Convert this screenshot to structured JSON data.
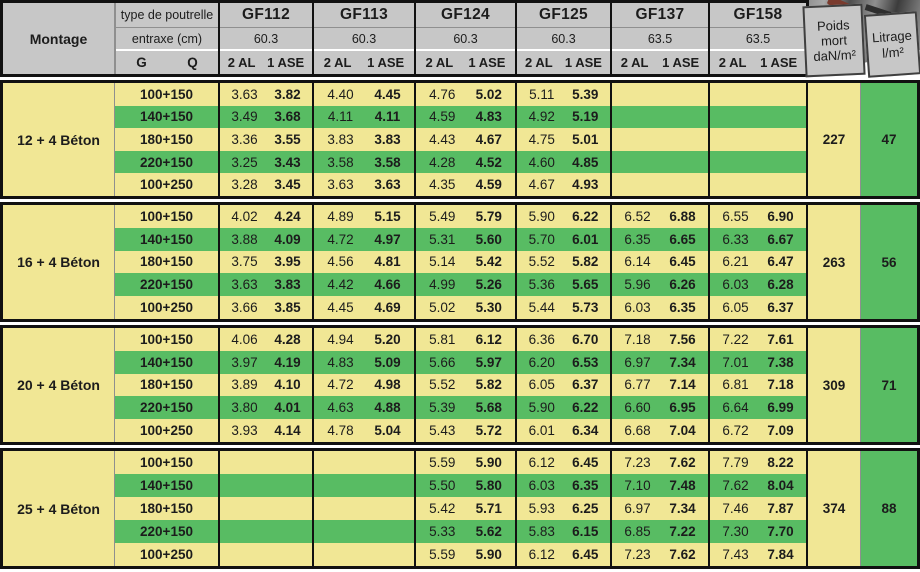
{
  "table": {
    "corner_label": "Montage",
    "header": {
      "type_de_poutrelle": "type de poutrelle",
      "entraxe": "entraxe (cm)",
      "g": "G",
      "q": "Q",
      "al": "2 AL",
      "ase": "1 ASE",
      "poids_line1": "Poids",
      "poids_line2": "mort",
      "poids_line3": "daN/m²",
      "litrage_line1": "Litrage",
      "litrage_line2": "l/m²",
      "beams": [
        {
          "name": "GF112",
          "entraxe": "60.3"
        },
        {
          "name": "GF113",
          "entraxe": "60.3"
        },
        {
          "name": "GF124",
          "entraxe": "60.3"
        },
        {
          "name": "GF125",
          "entraxe": "60.3"
        },
        {
          "name": "GF137",
          "entraxe": "63.5"
        },
        {
          "name": "GF158",
          "entraxe": "63.5"
        }
      ]
    },
    "colors": {
      "yellow": "#f1e795",
      "green": "#58bc63",
      "header_gray": "#c7c7c7",
      "border_black": "#111111"
    },
    "groups": [
      {
        "montage": "12 + 4 Béton",
        "poids": "227",
        "litrage": "47",
        "rows": [
          {
            "label": "100+150",
            "cells": [
              [
                "3.63",
                "3.82"
              ],
              [
                "4.40",
                "4.45"
              ],
              [
                "4.76",
                "5.02"
              ],
              [
                "5.11",
                "5.39"
              ],
              [
                "",
                ""
              ],
              [
                "",
                ""
              ]
            ]
          },
          {
            "label": "140+150",
            "cells": [
              [
                "3.49",
                "3.68"
              ],
              [
                "4.11",
                "4.11"
              ],
              [
                "4.59",
                "4.83"
              ],
              [
                "4.92",
                "5.19"
              ],
              [
                "",
                ""
              ],
              [
                "",
                ""
              ]
            ]
          },
          {
            "label": "180+150",
            "cells": [
              [
                "3.36",
                "3.55"
              ],
              [
                "3.83",
                "3.83"
              ],
              [
                "4.43",
                "4.67"
              ],
              [
                "4.75",
                "5.01"
              ],
              [
                "",
                ""
              ],
              [
                "",
                ""
              ]
            ]
          },
          {
            "label": "220+150",
            "cells": [
              [
                "3.25",
                "3.43"
              ],
              [
                "3.58",
                "3.58"
              ],
              [
                "4.28",
                "4.52"
              ],
              [
                "4.60",
                "4.85"
              ],
              [
                "",
                ""
              ],
              [
                "",
                ""
              ]
            ]
          },
          {
            "label": "100+250",
            "cells": [
              [
                "3.28",
                "3.45"
              ],
              [
                "3.63",
                "3.63"
              ],
              [
                "4.35",
                "4.59"
              ],
              [
                "4.67",
                "4.93"
              ],
              [
                "",
                ""
              ],
              [
                "",
                ""
              ]
            ]
          }
        ]
      },
      {
        "montage": "16 + 4 Béton",
        "poids": "263",
        "litrage": "56",
        "rows": [
          {
            "label": "100+150",
            "cells": [
              [
                "4.02",
                "4.24"
              ],
              [
                "4.89",
                "5.15"
              ],
              [
                "5.49",
                "5.79"
              ],
              [
                "5.90",
                "6.22"
              ],
              [
                "6.52",
                "6.88"
              ],
              [
                "6.55",
                "6.90"
              ]
            ]
          },
          {
            "label": "140+150",
            "cells": [
              [
                "3.88",
                "4.09"
              ],
              [
                "4.72",
                "4.97"
              ],
              [
                "5.31",
                "5.60"
              ],
              [
                "5.70",
                "6.01"
              ],
              [
                "6.35",
                "6.65"
              ],
              [
                "6.33",
                "6.67"
              ]
            ]
          },
          {
            "label": "180+150",
            "cells": [
              [
                "3.75",
                "3.95"
              ],
              [
                "4.56",
                "4.81"
              ],
              [
                "5.14",
                "5.42"
              ],
              [
                "5.52",
                "5.82"
              ],
              [
                "6.14",
                "6.45"
              ],
              [
                "6.21",
                "6.47"
              ]
            ]
          },
          {
            "label": "220+150",
            "cells": [
              [
                "3.63",
                "3.83"
              ],
              [
                "4.42",
                "4.66"
              ],
              [
                "4.99",
                "5.26"
              ],
              [
                "5.36",
                "5.65"
              ],
              [
                "5.96",
                "6.26"
              ],
              [
                "6.03",
                "6.28"
              ]
            ]
          },
          {
            "label": "100+250",
            "cells": [
              [
                "3.66",
                "3.85"
              ],
              [
                "4.45",
                "4.69"
              ],
              [
                "5.02",
                "5.30"
              ],
              [
                "5.44",
                "5.73"
              ],
              [
                "6.03",
                "6.35"
              ],
              [
                "6.05",
                "6.37"
              ]
            ]
          }
        ]
      },
      {
        "montage": "20 + 4 Béton",
        "poids": "309",
        "litrage": "71",
        "rows": [
          {
            "label": "100+150",
            "cells": [
              [
                "4.06",
                "4.28"
              ],
              [
                "4.94",
                "5.20"
              ],
              [
                "5.81",
                "6.12"
              ],
              [
                "6.36",
                "6.70"
              ],
              [
                "7.18",
                "7.56"
              ],
              [
                "7.22",
                "7.61"
              ]
            ]
          },
          {
            "label": "140+150",
            "cells": [
              [
                "3.97",
                "4.19"
              ],
              [
                "4.83",
                "5.09"
              ],
              [
                "5.66",
                "5.97"
              ],
              [
                "6.20",
                "6.53"
              ],
              [
                "6.97",
                "7.34"
              ],
              [
                "7.01",
                "7.38"
              ]
            ]
          },
          {
            "label": "180+150",
            "cells": [
              [
                "3.89",
                "4.10"
              ],
              [
                "4.72",
                "4.98"
              ],
              [
                "5.52",
                "5.82"
              ],
              [
                "6.05",
                "6.37"
              ],
              [
                "6.77",
                "7.14"
              ],
              [
                "6.81",
                "7.18"
              ]
            ]
          },
          {
            "label": "220+150",
            "cells": [
              [
                "3.80",
                "4.01"
              ],
              [
                "4.63",
                "4.88"
              ],
              [
                "5.39",
                "5.68"
              ],
              [
                "5.90",
                "6.22"
              ],
              [
                "6.60",
                "6.95"
              ],
              [
                "6.64",
                "6.99"
              ]
            ]
          },
          {
            "label": "100+250",
            "cells": [
              [
                "3.93",
                "4.14"
              ],
              [
                "4.78",
                "5.04"
              ],
              [
                "5.43",
                "5.72"
              ],
              [
                "6.01",
                "6.34"
              ],
              [
                "6.68",
                "7.04"
              ],
              [
                "6.72",
                "7.09"
              ]
            ]
          }
        ]
      },
      {
        "montage": "25 + 4 Béton",
        "poids": "374",
        "litrage": "88",
        "rows": [
          {
            "label": "100+150",
            "cells": [
              [
                "",
                ""
              ],
              [
                "",
                ""
              ],
              [
                "5.59",
                "5.90"
              ],
              [
                "6.12",
                "6.45"
              ],
              [
                "7.23",
                "7.62"
              ],
              [
                "7.79",
                "8.22"
              ]
            ]
          },
          {
            "label": "140+150",
            "cells": [
              [
                "",
                ""
              ],
              [
                "",
                ""
              ],
              [
                "5.50",
                "5.80"
              ],
              [
                "6.03",
                "6.35"
              ],
              [
                "7.10",
                "7.48"
              ],
              [
                "7.62",
                "8.04"
              ]
            ]
          },
          {
            "label": "180+150",
            "cells": [
              [
                "",
                ""
              ],
              [
                "",
                ""
              ],
              [
                "5.42",
                "5.71"
              ],
              [
                "5.93",
                "6.25"
              ],
              [
                "6.97",
                "7.34"
              ],
              [
                "7.46",
                "7.87"
              ]
            ]
          },
          {
            "label": "220+150",
            "cells": [
              [
                "",
                ""
              ],
              [
                "",
                ""
              ],
              [
                "5.33",
                "5.62"
              ],
              [
                "5.83",
                "6.15"
              ],
              [
                "6.85",
                "7.22"
              ],
              [
                "7.30",
                "7.70"
              ]
            ]
          },
          {
            "label": "100+250",
            "cells": [
              [
                "",
                ""
              ],
              [
                "",
                ""
              ],
              [
                "5.59",
                "5.90"
              ],
              [
                "6.12",
                "6.45"
              ],
              [
                "7.23",
                "7.62"
              ],
              [
                "7.43",
                "7.84"
              ]
            ]
          }
        ]
      }
    ]
  }
}
